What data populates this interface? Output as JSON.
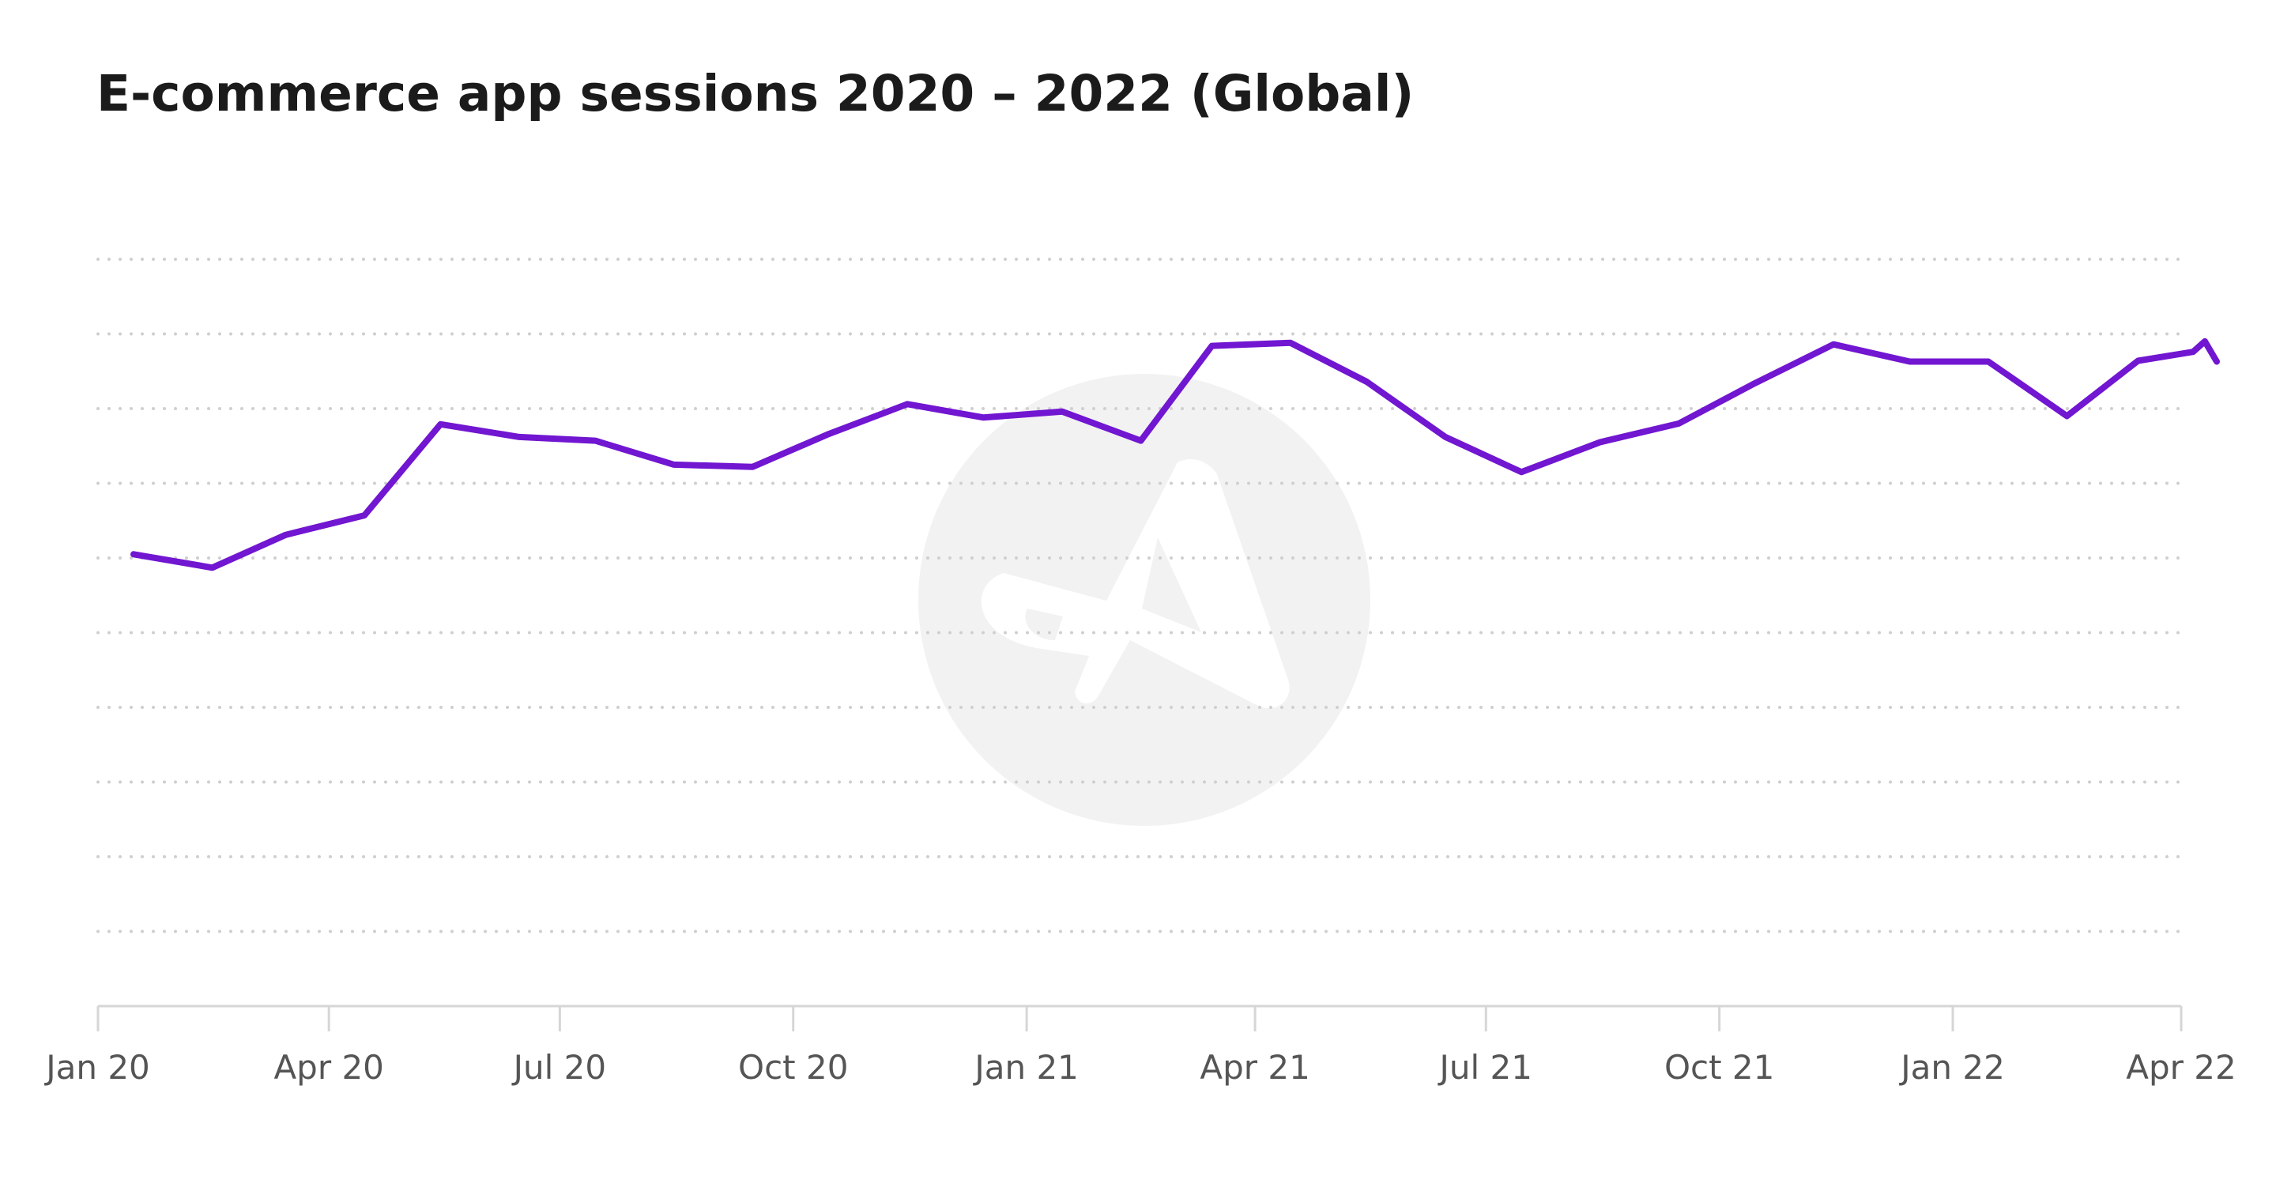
{
  "title": "E-commerce app sessions 2020 – 2022 (Global)",
  "colors": {
    "series": "#7116d1",
    "grid": "#cfcfcf",
    "axis": "#d6d6d6",
    "watermark": "#f2f2f2"
  },
  "chart_data": {
    "type": "line",
    "title": "E-commerce app sessions 2020 – 2022 (Global)",
    "xlabel": "",
    "ylabel": "",
    "grid": true,
    "y_gridlines": 10,
    "ylim": [
      0,
      100
    ],
    "tick_labels": [
      "Jan 20",
      "Apr 20",
      "Jul 20",
      "Oct 20",
      "Jan 21",
      "Apr 21",
      "Jul 21",
      "Oct 21",
      "Jan 22",
      "Apr 22"
    ],
    "tick_dates": [
      "2020-01-01",
      "2020-04-01",
      "2020-07-01",
      "2020-10-01",
      "2021-01-01",
      "2021-04-01",
      "2021-07-01",
      "2021-10-01",
      "2022-01-01",
      "2022-04-01"
    ],
    "xlim": [
      "2020-01-01",
      "2022-04-01"
    ],
    "series": [
      {
        "x": [
          "2020-01-15",
          "2020-02-15",
          "2020-03-15",
          "2020-04-15",
          "2020-05-15",
          "2020-06-15",
          "2020-07-15",
          "2020-08-15",
          "2020-09-15",
          "2020-10-15",
          "2020-11-15",
          "2020-12-15",
          "2021-01-15",
          "2021-02-15",
          "2021-03-15",
          "2021-04-15",
          "2021-05-15",
          "2021-06-15",
          "2021-07-15",
          "2021-08-15",
          "2021-09-15",
          "2021-10-15",
          "2021-11-15",
          "2021-12-15",
          "2022-01-15",
          "2022-02-15",
          "2022-03-15",
          "2022-04-15"
        ],
        "values": [
          60.5,
          58.7,
          63.1,
          65.7,
          77.9,
          76.2,
          75.7,
          72.5,
          72.2,
          76.6,
          80.6,
          78.8,
          79.6,
          75.7,
          88.4,
          88.8,
          83.6,
          76.2,
          71.5,
          75.5,
          78.0,
          83.4,
          88.6,
          86.3,
          86.3,
          79.0,
          86.4,
          86.3
        ]
      }
    ],
    "trailing_values": [
      89.0,
      87.6
    ]
  }
}
